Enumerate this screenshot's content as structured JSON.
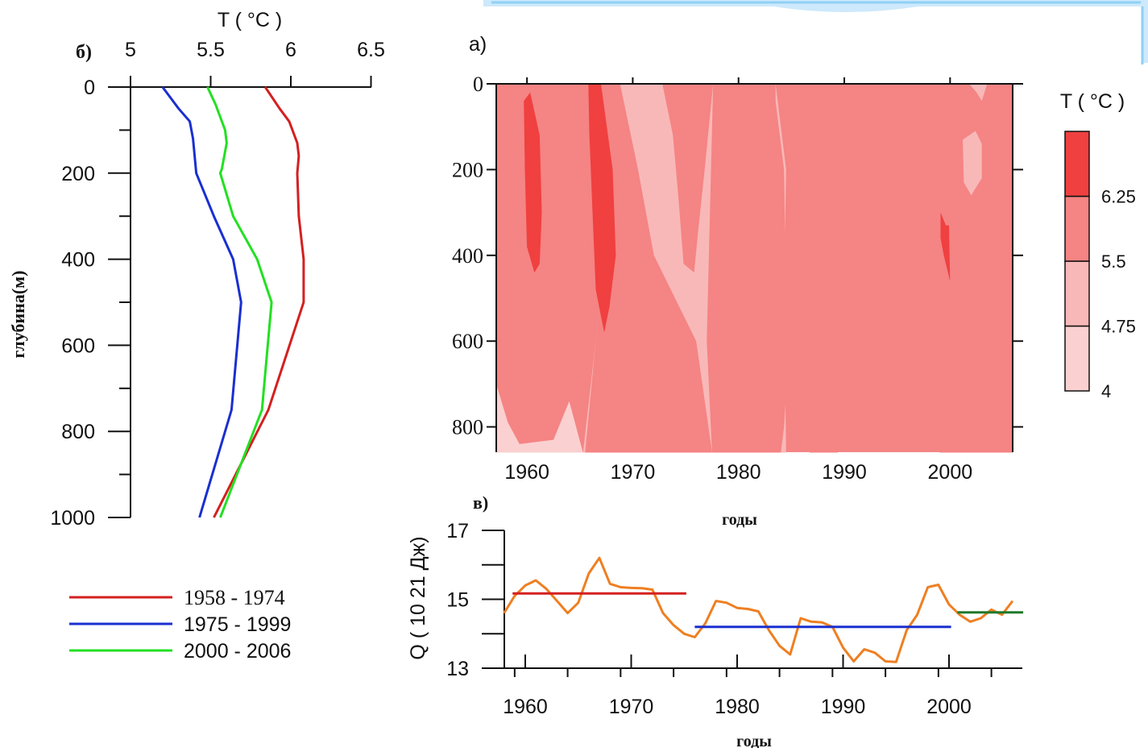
{
  "chart_data": [
    {
      "type": "line",
      "panel_label": "б)",
      "title": "T (  °C )",
      "xlabel": "T (  °C )",
      "ylabel": "глубина(м)",
      "xlim": [
        5,
        6.5
      ],
      "ylim": [
        1000,
        0
      ],
      "x_ticks": [
        "5",
        "5.5",
        "6",
        "6.5"
      ],
      "y_ticks": [
        "0",
        "200",
        "400",
        "600",
        "800",
        "1000"
      ],
      "series": [
        {
          "name": "1958 - 1974",
          "color": "#d42020",
          "x": [
            5.84,
            5.93,
            5.99,
            6.04,
            6.05,
            6.04,
            6.05,
            6.08,
            6.08,
            5.86,
            5.52
          ],
          "y": [
            0,
            50,
            80,
            130,
            160,
            200,
            300,
            400,
            500,
            750,
            1000
          ]
        },
        {
          "name": "1975 - 1999",
          "color": "#1a2fd0",
          "x": [
            5.2,
            5.3,
            5.37,
            5.39,
            5.4,
            5.41,
            5.52,
            5.64,
            5.69,
            5.63,
            5.43
          ],
          "y": [
            0,
            50,
            80,
            120,
            160,
            200,
            300,
            400,
            500,
            750,
            1000
          ]
        },
        {
          "name": "2000 - 2006",
          "color": "#22e022",
          "x": [
            5.48,
            5.53,
            5.59,
            5.6,
            5.57,
            5.56,
            5.64,
            5.79,
            5.88,
            5.82,
            5.56
          ],
          "y": [
            0,
            40,
            100,
            130,
            190,
            200,
            300,
            400,
            500,
            750,
            1000
          ]
        }
      ],
      "legend": [
        "1958 - 1974",
        "1975 - 1999",
        "2000 - 2006"
      ]
    },
    {
      "type": "heatmap",
      "panel_label": "а)",
      "xlabel": "годы",
      "ylabel": "",
      "xlim": [
        1957,
        2007
      ],
      "ylim": [
        860,
        0
      ],
      "x_ticks": [
        "1960",
        "1970",
        "1980",
        "1990",
        "2000"
      ],
      "y_ticks": [
        "0",
        "200",
        "400",
        "600",
        "800"
      ],
      "colorbar": {
        "title": "T (  °C )",
        "levels": [
          "4",
          "4.75",
          "5.5",
          "6.25"
        ],
        "colors": [
          "#fbd0d0",
          "#f9b8b8",
          "#f58484",
          "#f04040"
        ]
      },
      "regions": [
        {
          "level": "4.75-5.5",
          "points": [
            [
              1957,
              0
            ],
            [
              1972.8,
              0
            ],
            [
              1973.8,
              120
            ],
            [
              1974.3,
              260
            ],
            [
              1974.8,
              420
            ],
            [
              1975.8,
              440
            ],
            [
              1976.2,
              340
            ],
            [
              1976.8,
              200
            ],
            [
              1977.6,
              0
            ],
            [
              1983.5,
              0
            ],
            [
              1984.5,
              200
            ],
            [
              1984.3,
              500
            ],
            [
              1984.5,
              860
            ],
            [
              1957,
              860
            ]
          ]
        },
        {
          "level": "4-4.75",
          "points": [
            [
              1957,
              700
            ],
            [
              1958.2,
              790
            ],
            [
              1959.3,
              840
            ],
            [
              1962.5,
              830
            ],
            [
              1964,
              740
            ],
            [
              1965.3,
              860
            ],
            [
              1957,
              860
            ]
          ]
        },
        {
          "level": "5.5-6.25",
          "points": [
            [
              1977.6,
              0
            ],
            [
              1983.5,
              0
            ],
            [
              1983.5,
              40
            ],
            [
              1984.3,
              200
            ],
            [
              1984.5,
              500
            ],
            [
              1984.8,
              600
            ],
            [
              1984.3,
              800
            ],
            [
              1984,
              860
            ],
            [
              1977.5,
              860
            ],
            [
              1977,
              600
            ]
          ]
        },
        {
          "level": "5.5-6.25",
          "points": [
            [
              1965.7,
              0
            ],
            [
              1968.8,
              0
            ],
            [
              1970.5,
              200
            ],
            [
              1972,
              400
            ],
            [
              1976,
              600
            ],
            [
              1977.5,
              860
            ],
            [
              1965.5,
              860
            ],
            [
              1966.5,
              600
            ],
            [
              1967.5,
              400
            ],
            [
              1967.2,
              200
            ]
          ]
        },
        {
          "level": "5.5-6.25",
          "points": [
            [
              1957,
              0
            ],
            [
              1965.7,
              0
            ],
            [
              1967.2,
              200
            ],
            [
              1967.5,
              400
            ],
            [
              1966.5,
              600
            ],
            [
              1965.3,
              860
            ],
            [
              1964,
              740
            ],
            [
              1962.5,
              830
            ],
            [
              1959.3,
              840
            ],
            [
              1958.2,
              790
            ],
            [
              1957,
              700
            ]
          ]
        },
        {
          "level": "5.5-6.25",
          "points": [
            [
              1986.2,
              190
            ],
            [
              1987.3,
              210
            ],
            [
              1989.5,
              230
            ],
            [
              1989.8,
              600
            ],
            [
              1989.4,
              860
            ],
            [
              1986.7,
              860
            ],
            [
              1986,
              600
            ],
            [
              1986.4,
              400
            ]
          ]
        },
        {
          "level": "5.5-6.25",
          "points": [
            [
              1997,
              0
            ],
            [
              2007,
              0
            ],
            [
              2007,
              860
            ],
            [
              1999,
              860
            ],
            [
              1998,
              700
            ],
            [
              1997.5,
              560
            ],
            [
              1997,
              300
            ],
            [
              1997.2,
              120
            ]
          ]
        },
        {
          "level": "4.75-5.5",
          "points": [
            [
              2004.8,
              0
            ],
            [
              2006,
              0
            ],
            [
              2006.5,
              90
            ],
            [
              2006.8,
              180
            ],
            [
              2006.2,
              0
            ]
          ]
        },
        {
          "level": "4.75-5.5",
          "points": [
            [
              2001.8,
              0
            ],
            [
              2003.5,
              0
            ],
            [
              2003,
              40
            ],
            [
              2002.5,
              20
            ]
          ]
        },
        {
          "level": "4.75-5.5",
          "points": [
            [
              2001.2,
              130
            ],
            [
              2002.4,
              110
            ],
            [
              2003,
              140
            ],
            [
              2003,
              220
            ],
            [
              2002,
              260
            ],
            [
              2001.3,
              230
            ]
          ]
        },
        {
          "level": "6.25+",
          "points": [
            [
              1959.7,
              40
            ],
            [
              1960.3,
              20
            ],
            [
              1961.2,
              120
            ],
            [
              1961.4,
              300
            ],
            [
              1961.2,
              420
            ],
            [
              1960.7,
              440
            ],
            [
              1960.0,
              380
            ],
            [
              1959.8,
              200
            ]
          ]
        },
        {
          "level": "6.25+",
          "points": [
            [
              1965.8,
              0
            ],
            [
              1967.0,
              0
            ],
            [
              1968.1,
              200
            ],
            [
              1968.4,
              400
            ],
            [
              1967.8,
              520
            ],
            [
              1967.3,
              580
            ],
            [
              1966.5,
              480
            ],
            [
              1966.2,
              300
            ],
            [
              1965.9,
              120
            ]
          ]
        },
        {
          "level": "6.25+",
          "points": [
            [
              1999.1,
              300
            ],
            [
              1999.6,
              330
            ],
            [
              1999.9,
              330
            ],
            [
              2000.0,
              460
            ],
            [
              1999.4,
              400
            ],
            [
              1999.1,
              360
            ]
          ]
        }
      ]
    },
    {
      "type": "line",
      "panel_label": "в)",
      "xlabel": "годы",
      "ylabel": "Q ( 10 21 Дж)",
      "xlim": [
        1958,
        2007
      ],
      "ylim": [
        13,
        17
      ],
      "x_ticks": [
        "1960",
        "1970",
        "1980",
        "1990",
        "2000"
      ],
      "y_ticks": [
        "13",
        "15",
        "17"
      ],
      "series": [
        {
          "name": "",
          "color": "#ee7f22",
          "x": [
            1958,
            1959,
            1960,
            1961,
            1962,
            1963,
            1964,
            1965,
            1966,
            1967,
            1968,
            1969,
            1970,
            1971,
            1972,
            1973,
            1974,
            1975,
            1976,
            1977,
            1978,
            1979,
            1980,
            1981,
            1982,
            1983,
            1984,
            1985,
            1986,
            1987,
            1988,
            1989,
            1990,
            1991,
            1992,
            1993,
            1994,
            1995,
            1996,
            1997,
            1998,
            1999,
            2000,
            2001,
            2002,
            2003,
            2004,
            2005,
            2006
          ],
          "y": [
            14.6,
            15.1,
            15.4,
            15.55,
            15.3,
            14.95,
            14.6,
            14.9,
            15.75,
            16.2,
            15.45,
            15.35,
            15.33,
            15.32,
            15.28,
            14.6,
            14.25,
            14.0,
            13.9,
            14.3,
            14.95,
            14.9,
            14.75,
            14.72,
            14.65,
            14.1,
            13.65,
            13.4,
            14.45,
            14.35,
            14.33,
            14.2,
            13.6,
            13.2,
            13.55,
            13.45,
            13.2,
            13.18,
            14.1,
            14.55,
            15.35,
            15.42,
            14.85,
            14.55,
            14.35,
            14.45,
            14.7,
            14.55,
            14.95
          ]
        },
        {
          "name": "",
          "color": "#d42020",
          "x": [
            1958.8,
            1975.2
          ],
          "y": [
            15.17,
            15.17
          ]
        },
        {
          "name": "",
          "color": "#1a2fd0",
          "x": [
            1976,
            2000.2
          ],
          "y": [
            14.2,
            14.2
          ]
        },
        {
          "name": "",
          "color": "#1f7a2a",
          "x": [
            2000.8,
            2007
          ],
          "y": [
            14.62,
            14.62
          ]
        }
      ]
    }
  ]
}
